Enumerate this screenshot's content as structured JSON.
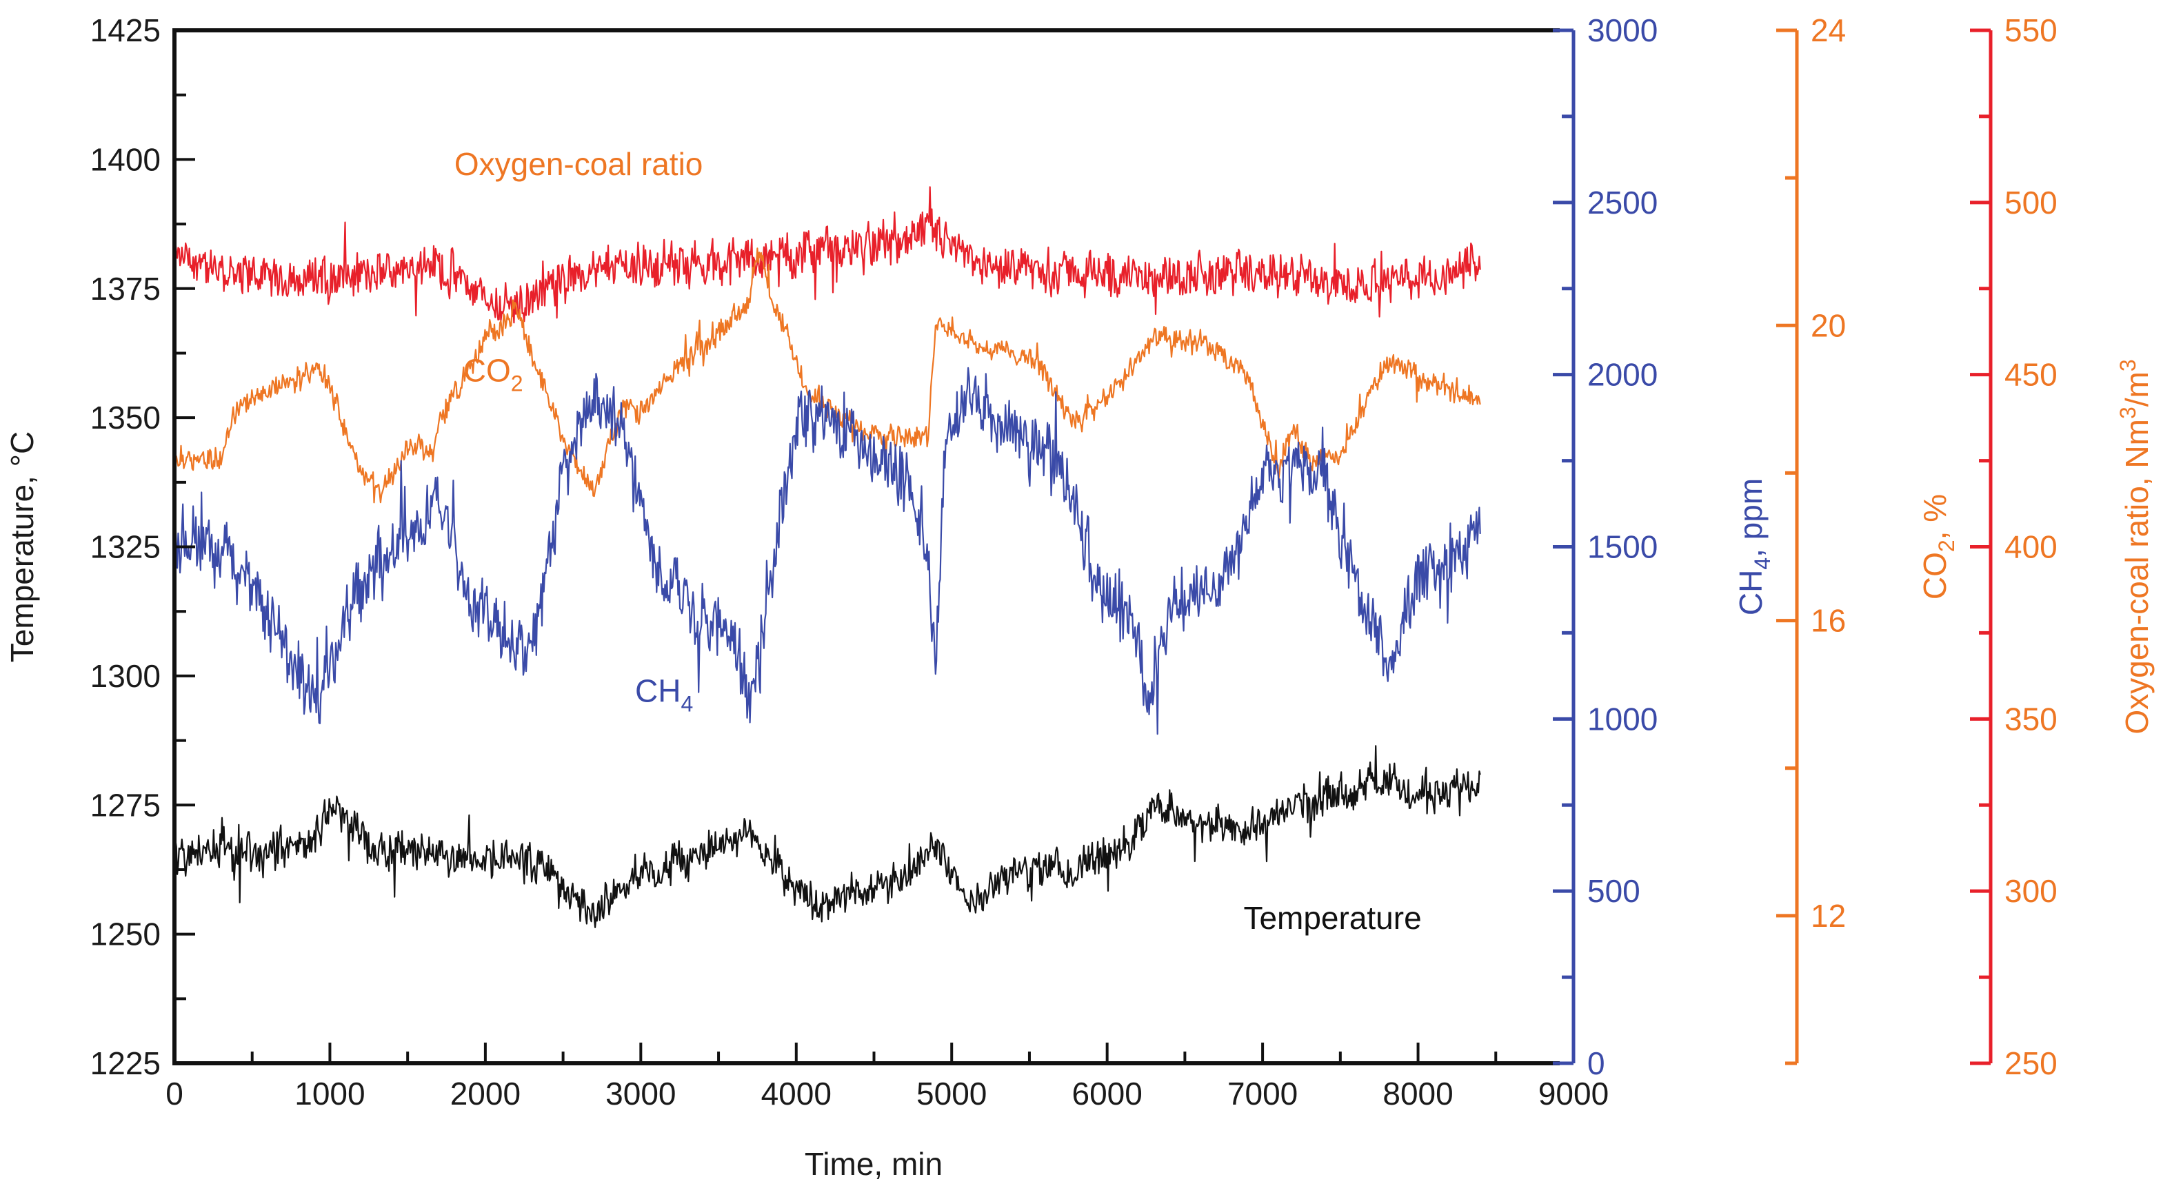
{
  "chart_data": {
    "type": "line",
    "title": "",
    "xlabel": "Time, min",
    "xlim": [
      0,
      9000
    ],
    "x_ticks": [
      "0",
      "1000",
      "2000",
      "3000",
      "4000",
      "5000",
      "6000",
      "7000",
      "8000",
      "9000"
    ],
    "grid": false,
    "legend": "none (inline annotations)",
    "axes": [
      {
        "id": "temp",
        "label": "Temperature, °C",
        "side": "left",
        "color": "#1a1a1a",
        "tick_color": "#1a1a1a",
        "ylim": [
          1225,
          1425
        ],
        "ticks": [
          "1225",
          "1250",
          "1275",
          "1300",
          "1325",
          "1350",
          "1375",
          "1400",
          "1425"
        ]
      },
      {
        "id": "ch4",
        "label_main": "CH",
        "label_sub": "4",
        "label_rest": ", ppm",
        "side": "right",
        "color": "#3a4aa8",
        "tick_color": "#3a4aa8",
        "ylim": [
          0,
          3000
        ],
        "ticks": [
          "0",
          "500",
          "1000",
          "1500",
          "2000",
          "2500",
          "3000"
        ]
      },
      {
        "id": "co2",
        "label_main": "CO",
        "label_sub": "2",
        "label_rest": ", %",
        "side": "right",
        "color": "#ee7623",
        "tick_color": "#ee7623",
        "ylim": [
          10,
          24
        ],
        "ticks": [
          "12",
          "16",
          "20",
          "24"
        ]
      },
      {
        "id": "o2",
        "label_main": "Oxygen-coal ratio, Nm",
        "label_sup": "3",
        "label_rest": "/m",
        "label_sup2": "3",
        "side": "right",
        "color": "#e8202a",
        "tick_color": "#ee7623",
        "ylim": [
          250,
          550
        ],
        "ticks": [
          "250",
          "300",
          "350",
          "400",
          "450",
          "500",
          "550"
        ]
      }
    ],
    "series": [
      {
        "name": "Oxygen-coal ratio",
        "axis": "o2",
        "color": "#e8202a",
        "noise": 6,
        "x": [
          0,
          400,
          800,
          1200,
          1500,
          1700,
          2000,
          2200,
          2500,
          3000,
          3500,
          4000,
          4500,
          4800,
          4900,
          5200,
          5600,
          6000,
          6400,
          6800,
          7200,
          7600,
          8000,
          8400
        ],
        "y": [
          484,
          479,
          478,
          478,
          483,
          482,
          472,
          470,
          478,
          482,
          483,
          485,
          487,
          489,
          492,
          481,
          480,
          479,
          478,
          480,
          478,
          477,
          478,
          482
        ]
      },
      {
        "name": "CO2",
        "axis": "co2",
        "color": "#ee7623",
        "noise": 0.15,
        "x": [
          0,
          300,
          400,
          600,
          900,
          1000,
          1200,
          1300,
          1450,
          1500,
          1650,
          1700,
          2000,
          2200,
          2300,
          2500,
          2700,
          2800,
          2900,
          3000,
          3300,
          3500,
          3700,
          3750,
          3850,
          4100,
          4400,
          4800,
          4850,
          4900,
          5200,
          5500,
          5800,
          6000,
          6300,
          6600,
          6900,
          7100,
          7200,
          7300,
          7500,
          7700,
          7800,
          8000,
          8400
        ],
        "y": [
          18.2,
          18.2,
          18.9,
          19.1,
          19.4,
          19.2,
          18.0,
          17.7,
          18.1,
          18.4,
          18.2,
          18.7,
          19.8,
          20.2,
          19.6,
          18.5,
          17.7,
          18.5,
          18.9,
          18.8,
          19.6,
          19.9,
          20.4,
          21.0,
          20.3,
          19.0,
          18.6,
          18.5,
          18.5,
          20.1,
          19.7,
          19.6,
          18.7,
          19.0,
          19.8,
          19.8,
          19.3,
          18.1,
          18.6,
          18.2,
          18.2,
          19.1,
          19.5,
          19.3,
          19.0
        ]
      },
      {
        "name": "CH4",
        "axis": "ch4",
        "color": "#3a4aa8",
        "noise": 90,
        "x": [
          0,
          200,
          400,
          600,
          900,
          1000,
          1200,
          1400,
          1600,
          1700,
          1900,
          2100,
          2300,
          2500,
          2700,
          2900,
          3100,
          3300,
          3600,
          3700,
          3800,
          4000,
          4200,
          4400,
          4700,
          4850,
          4900,
          4950,
          5100,
          5400,
          5700,
          5900,
          6000,
          6200,
          6250,
          6400,
          6800,
          7000,
          7200,
          7400,
          7600,
          7800,
          8000,
          8200,
          8400
        ],
        "y": [
          1550,
          1500,
          1450,
          1300,
          1050,
          1150,
          1400,
          1500,
          1550,
          1650,
          1350,
          1250,
          1200,
          1700,
          1950,
          1850,
          1450,
          1350,
          1200,
          1000,
          1300,
          1850,
          1900,
          1800,
          1700,
          1450,
          1150,
          1750,
          1950,
          1850,
          1750,
          1450,
          1350,
          1250,
          1050,
          1300,
          1450,
          1700,
          1750,
          1700,
          1400,
          1150,
          1400,
          1450,
          1550
        ]
      },
      {
        "name": "Temperature",
        "axis": "temp",
        "color": "#111111",
        "noise": 3.5,
        "x": [
          0,
          300,
          500,
          900,
          1000,
          1300,
          1700,
          2000,
          2300,
          2500,
          2700,
          3000,
          3400,
          3700,
          3900,
          4100,
          4400,
          4800,
          4900,
          5100,
          5400,
          5800,
          6000,
          6200,
          6300,
          6500,
          6900,
          7200,
          7500,
          7800,
          8100,
          8400
        ],
        "y": [
          1265,
          1267,
          1265,
          1268,
          1276,
          1266,
          1266,
          1265,
          1264,
          1258,
          1255,
          1262,
          1266,
          1270,
          1262,
          1256,
          1258,
          1263,
          1268,
          1256,
          1262,
          1263,
          1265,
          1270,
          1275,
          1272,
          1270,
          1275,
          1278,
          1279,
          1276,
          1280
        ]
      }
    ],
    "annotations": [
      {
        "text_main": "Oxygen-coal ratio",
        "text_sub": "",
        "color": "#ee7623",
        "x": 2600,
        "axis": "temp",
        "y": 1397
      },
      {
        "text_main": "CO",
        "text_sub": "2",
        "color": "#ee7623",
        "x": 2050,
        "axis": "temp",
        "y": 1357
      },
      {
        "text_main": "CH",
        "text_sub": "4",
        "color": "#3a4aa8",
        "x": 3150,
        "axis": "temp",
        "y": 1295
      },
      {
        "text_main": "Temperature",
        "text_sub": "",
        "color": "#111111",
        "x": 7450,
        "axis": "temp",
        "y": 1251
      }
    ]
  }
}
